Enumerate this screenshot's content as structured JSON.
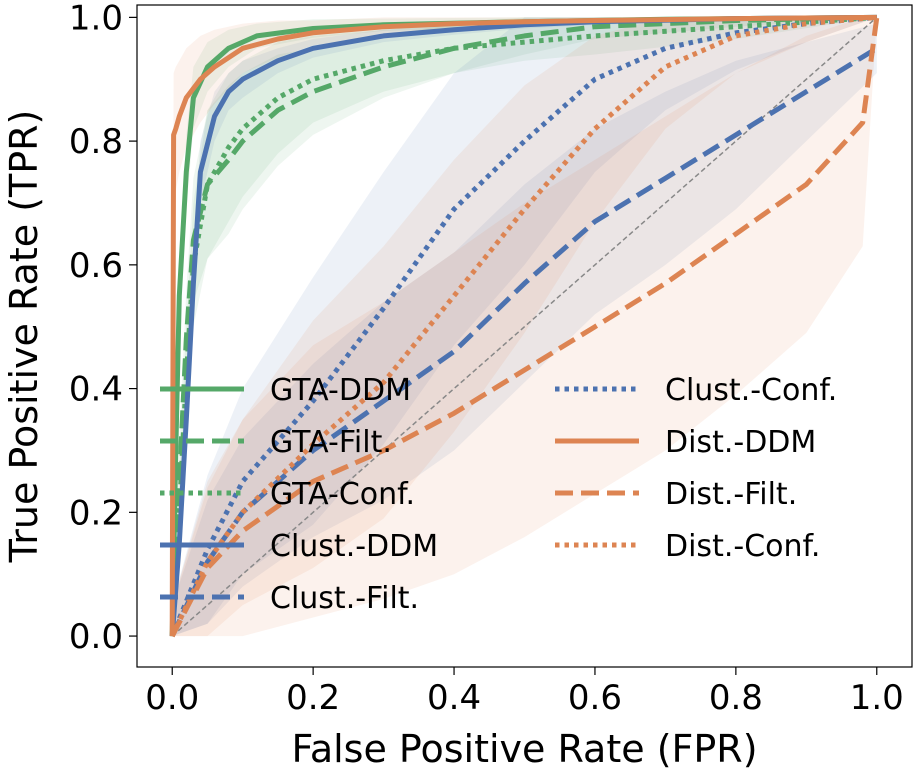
{
  "chart_data": {
    "type": "line",
    "title": "",
    "xlabel": "False Positive Rate (FPR)",
    "ylabel": "True Positive Rate (TPR)",
    "xlim": [
      -0.05,
      1.05
    ],
    "ylim": [
      -0.05,
      1.02
    ],
    "xticks": [
      0.0,
      0.2,
      0.4,
      0.6,
      0.8,
      1.0
    ],
    "xtick_labels": [
      "0.0",
      "0.2",
      "0.4",
      "0.6",
      "0.8",
      "1.0"
    ],
    "yticks": [
      0.0,
      0.2,
      0.4,
      0.6,
      0.8,
      1.0
    ],
    "ytick_labels": [
      "0.0",
      "0.2",
      "0.4",
      "0.6",
      "0.8",
      "1.0"
    ],
    "grid": false,
    "legend_position": "center-left",
    "reference_line": {
      "name": "chance",
      "x": [
        0,
        1
      ],
      "y": [
        0,
        1
      ],
      "color": "#888888"
    },
    "series": [
      {
        "name": "GTA-DDM",
        "color": "#55a868",
        "style": "solid",
        "x": [
          0,
          0.005,
          0.01,
          0.02,
          0.03,
          0.05,
          0.08,
          0.12,
          0.2,
          0.3,
          0.5,
          0.7,
          1.0
        ],
        "y": [
          0,
          0.3,
          0.55,
          0.75,
          0.87,
          0.92,
          0.95,
          0.97,
          0.982,
          0.988,
          0.993,
          0.997,
          1.0
        ],
        "band": [
          0.07,
          0.04,
          0.04,
          0.06,
          0.05,
          0.04,
          0.03,
          0.02,
          0.015,
          0.01,
          0.008,
          0.005,
          0
        ]
      },
      {
        "name": "GTA-Filt.",
        "color": "#55a868",
        "style": "dashed",
        "x": [
          0,
          0.01,
          0.02,
          0.03,
          0.05,
          0.08,
          0.1,
          0.15,
          0.2,
          0.3,
          0.4,
          0.5,
          0.6,
          0.8,
          1.0
        ],
        "y": [
          0,
          0.25,
          0.48,
          0.64,
          0.73,
          0.77,
          0.8,
          0.85,
          0.88,
          0.92,
          0.95,
          0.97,
          0.985,
          0.995,
          1.0
        ],
        "band": [
          0.05,
          0.06,
          0.08,
          0.1,
          0.12,
          0.12,
          0.11,
          0.09,
          0.07,
          0.05,
          0.04,
          0.03,
          0.02,
          0.01,
          0
        ]
      },
      {
        "name": "GTA-Conf.",
        "color": "#55a868",
        "style": "dotted",
        "x": [
          0,
          0.01,
          0.02,
          0.03,
          0.05,
          0.08,
          0.1,
          0.15,
          0.2,
          0.3,
          0.4,
          0.5,
          0.6,
          0.8,
          1.0
        ],
        "y": [
          0,
          0.2,
          0.42,
          0.6,
          0.73,
          0.79,
          0.82,
          0.87,
          0.9,
          0.93,
          0.95,
          0.96,
          0.97,
          0.985,
          1.0
        ],
        "band": [
          0.05,
          0.06,
          0.08,
          0.1,
          0.12,
          0.12,
          0.11,
          0.09,
          0.07,
          0.05,
          0.04,
          0.03,
          0.03,
          0.02,
          0
        ]
      },
      {
        "name": "Clust.-DDM",
        "color": "#4c72b0",
        "style": "solid",
        "x": [
          0,
          0.01,
          0.02,
          0.03,
          0.04,
          0.06,
          0.08,
          0.1,
          0.15,
          0.2,
          0.3,
          0.4,
          0.5,
          0.6,
          0.8,
          1.0
        ],
        "y": [
          0,
          0.15,
          0.35,
          0.57,
          0.75,
          0.84,
          0.88,
          0.9,
          0.93,
          0.95,
          0.97,
          0.98,
          0.988,
          0.993,
          0.998,
          1.0
        ],
        "band": [
          0.03,
          0.04,
          0.05,
          0.05,
          0.05,
          0.04,
          0.03,
          0.03,
          0.02,
          0.015,
          0.01,
          0.008,
          0.006,
          0.005,
          0.003,
          0
        ]
      },
      {
        "name": "Clust.-Filt.",
        "color": "#4c72b0",
        "style": "dashed",
        "x": [
          0,
          0.05,
          0.1,
          0.2,
          0.3,
          0.4,
          0.5,
          0.6,
          0.7,
          0.8,
          0.9,
          1.0
        ],
        "y": [
          0,
          0.12,
          0.2,
          0.3,
          0.38,
          0.46,
          0.57,
          0.67,
          0.74,
          0.81,
          0.88,
          0.95
        ],
        "band": [
          0.05,
          0.1,
          0.12,
          0.14,
          0.16,
          0.16,
          0.16,
          0.15,
          0.14,
          0.12,
          0.08,
          0.04
        ]
      },
      {
        "name": "Clust.-Conf.",
        "color": "#4c72b0",
        "style": "dotted",
        "x": [
          0,
          0.05,
          0.1,
          0.2,
          0.3,
          0.4,
          0.5,
          0.6,
          0.7,
          0.8,
          0.9,
          1.0
        ],
        "y": [
          0,
          0.14,
          0.25,
          0.38,
          0.53,
          0.69,
          0.8,
          0.9,
          0.95,
          0.975,
          0.99,
          1.0
        ],
        "band": [
          0.05,
          0.12,
          0.15,
          0.2,
          0.22,
          0.22,
          0.2,
          0.15,
          0.1,
          0.06,
          0.03,
          0
        ]
      },
      {
        "name": "Dist.-DDM",
        "color": "#dd8452",
        "style": "solid",
        "x": [
          0,
          0.002,
          0.005,
          0.01,
          0.02,
          0.04,
          0.06,
          0.1,
          0.15,
          0.2,
          0.3,
          0.4,
          0.5,
          0.6,
          0.8,
          1.0
        ],
        "y": [
          0,
          0.81,
          0.82,
          0.84,
          0.87,
          0.9,
          0.92,
          0.95,
          0.965,
          0.975,
          0.985,
          0.99,
          0.993,
          0.995,
          0.998,
          1.0
        ],
        "band": [
          0,
          0.1,
          0.1,
          0.09,
          0.08,
          0.07,
          0.06,
          0.04,
          0.03,
          0.02,
          0.015,
          0.01,
          0.008,
          0.005,
          0.003,
          0
        ]
      },
      {
        "name": "Dist.-Filt.",
        "color": "#dd8452",
        "style": "dashed",
        "x": [
          0,
          0.05,
          0.1,
          0.2,
          0.3,
          0.4,
          0.5,
          0.6,
          0.7,
          0.8,
          0.9,
          0.98,
          1.0
        ],
        "y": [
          0,
          0.11,
          0.17,
          0.25,
          0.3,
          0.36,
          0.43,
          0.5,
          0.57,
          0.65,
          0.73,
          0.83,
          1.0
        ],
        "band": [
          0.05,
          0.14,
          0.18,
          0.22,
          0.24,
          0.26,
          0.27,
          0.27,
          0.27,
          0.26,
          0.24,
          0.2,
          0
        ]
      },
      {
        "name": "Dist.-Conf.",
        "color": "#dd8452",
        "style": "dotted",
        "x": [
          0,
          0.05,
          0.1,
          0.2,
          0.3,
          0.4,
          0.5,
          0.6,
          0.7,
          0.8,
          0.9,
          1.0
        ],
        "y": [
          0,
          0.12,
          0.2,
          0.31,
          0.41,
          0.55,
          0.69,
          0.82,
          0.92,
          0.97,
          0.99,
          1.0
        ],
        "band": [
          0.05,
          0.12,
          0.15,
          0.2,
          0.22,
          0.22,
          0.2,
          0.15,
          0.1,
          0.06,
          0.03,
          0
        ]
      }
    ],
    "legend": {
      "columns": [
        [
          "GTA-DDM",
          "GTA-Filt.",
          "GTA-Conf.",
          "Clust.-DDM",
          "Clust.-Filt."
        ],
        [
          "Clust.-Conf.",
          "Dist.-DDM",
          "Dist.-Filt.",
          "Dist.-Conf."
        ]
      ]
    }
  }
}
